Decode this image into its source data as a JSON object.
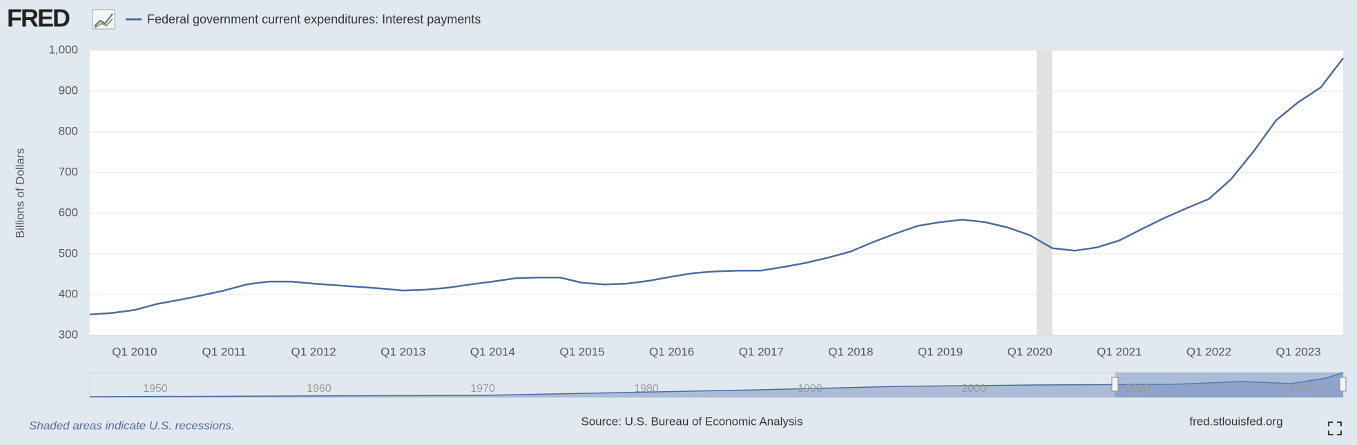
{
  "logo": "FRED",
  "chart_data": {
    "type": "line",
    "y_label": "Billions of Dollars",
    "categories": [
      "Q3 2009",
      "Q4 2009",
      "Q1 2010",
      "Q2 2010",
      "Q3 2010",
      "Q4 2010",
      "Q1 2011",
      "Q2 2011",
      "Q3 2011",
      "Q4 2011",
      "Q1 2012",
      "Q2 2012",
      "Q3 2012",
      "Q4 2012",
      "Q1 2013",
      "Q2 2013",
      "Q3 2013",
      "Q4 2013",
      "Q1 2014",
      "Q2 2014",
      "Q3 2014",
      "Q4 2014",
      "Q1 2015",
      "Q2 2015",
      "Q3 2015",
      "Q4 2015",
      "Q1 2016",
      "Q2 2016",
      "Q3 2016",
      "Q4 2016",
      "Q1 2017",
      "Q2 2017",
      "Q3 2017",
      "Q4 2017",
      "Q1 2018",
      "Q2 2018",
      "Q3 2018",
      "Q4 2018",
      "Q1 2019",
      "Q2 2019",
      "Q3 2019",
      "Q4 2019",
      "Q1 2020",
      "Q2 2020",
      "Q3 2020",
      "Q4 2020",
      "Q1 2021",
      "Q2 2021",
      "Q3 2021",
      "Q4 2021",
      "Q1 2022",
      "Q2 2022",
      "Q3 2022",
      "Q4 2022",
      "Q1 2023",
      "Q2 2023",
      "Q3 2023"
    ],
    "xticks": [
      "Q1 2010",
      "Q1 2011",
      "Q1 2012",
      "Q1 2013",
      "Q1 2014",
      "Q1 2015",
      "Q1 2016",
      "Q1 2017",
      "Q1 2018",
      "Q1 2019",
      "Q1 2020",
      "Q1 2021",
      "Q1 2022",
      "Q1 2023"
    ],
    "series": [
      {
        "name": "Federal government current expenditures: Interest payments",
        "color": "#4c6a9c",
        "values": [
          351,
          355,
          362,
          377,
          387,
          398,
          410,
          425,
          432,
          432,
          427,
          423,
          419,
          415,
          410,
          412,
          417,
          425,
          432,
          440,
          442,
          442,
          429,
          425,
          427,
          434,
          444,
          453,
          457,
          459,
          459,
          468,
          478,
          491,
          506,
          529,
          550,
          569,
          578,
          584,
          578,
          565,
          546,
          514,
          508,
          516,
          533,
          561,
          588,
          612,
          635,
          684,
          752,
          828,
          873,
          909,
          981
        ]
      }
    ],
    "ylim": [
      300,
      1000
    ],
    "yticks": [
      300,
      400,
      500,
      600,
      700,
      800,
      900,
      {
        "value": 1000,
        "label": "1,000"
      }
    ],
    "grid": true,
    "recessions": [
      {
        "start": "Q1 2020",
        "end": "Q2 2020"
      }
    ],
    "navigator_labels": [
      "1950",
      "1960",
      "1970",
      "1980",
      "1990",
      "2000",
      "2010",
      "2020"
    ],
    "note": "Shaded areas indicate U.S. recessions.",
    "source": "Source: U.S. Bureau of Economic Analysis",
    "url": "fred.stlouisfed.org"
  }
}
